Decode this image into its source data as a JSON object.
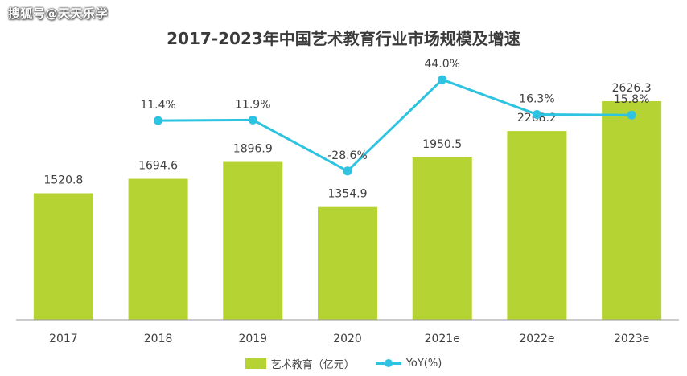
{
  "watermark": "搜狐号@天天乐学",
  "colors": {
    "bar": "#b6d334",
    "line": "#2ec3e0",
    "axis": "#9a9a9a",
    "text": "#404040"
  },
  "legend": {
    "bar_label": "艺术教育（亿元）",
    "line_label": "YoY(%)"
  },
  "chart_data": {
    "type": "bar",
    "title": "2017-2023年中国艺术教育行业市场规模及增速",
    "categories": [
      "2017",
      "2018",
      "2019",
      "2020",
      "2021e",
      "2022e",
      "2023e"
    ],
    "series": [
      {
        "name": "艺术教育（亿元）",
        "type": "bar",
        "values": [
          1520.8,
          1694.6,
          1896.9,
          1354.9,
          1950.5,
          2268.2,
          2626.3
        ],
        "labels": [
          "1520.8",
          "1694.6",
          "1896.9",
          "1354.9",
          "1950.5",
          "2268.2",
          "2626.3"
        ]
      },
      {
        "name": "YoY(%)",
        "type": "line",
        "values": [
          null,
          11.4,
          11.9,
          -28.6,
          44.0,
          16.3,
          15.8
        ],
        "labels": [
          "",
          "11.4%",
          "11.9%",
          "-28.6%",
          "44.0%",
          "16.3%",
          "15.8%"
        ]
      }
    ],
    "ylim_bar": [
      0,
      2800
    ],
    "ylim_line": [
      -60,
      60
    ],
    "legend_position": "bottom"
  }
}
